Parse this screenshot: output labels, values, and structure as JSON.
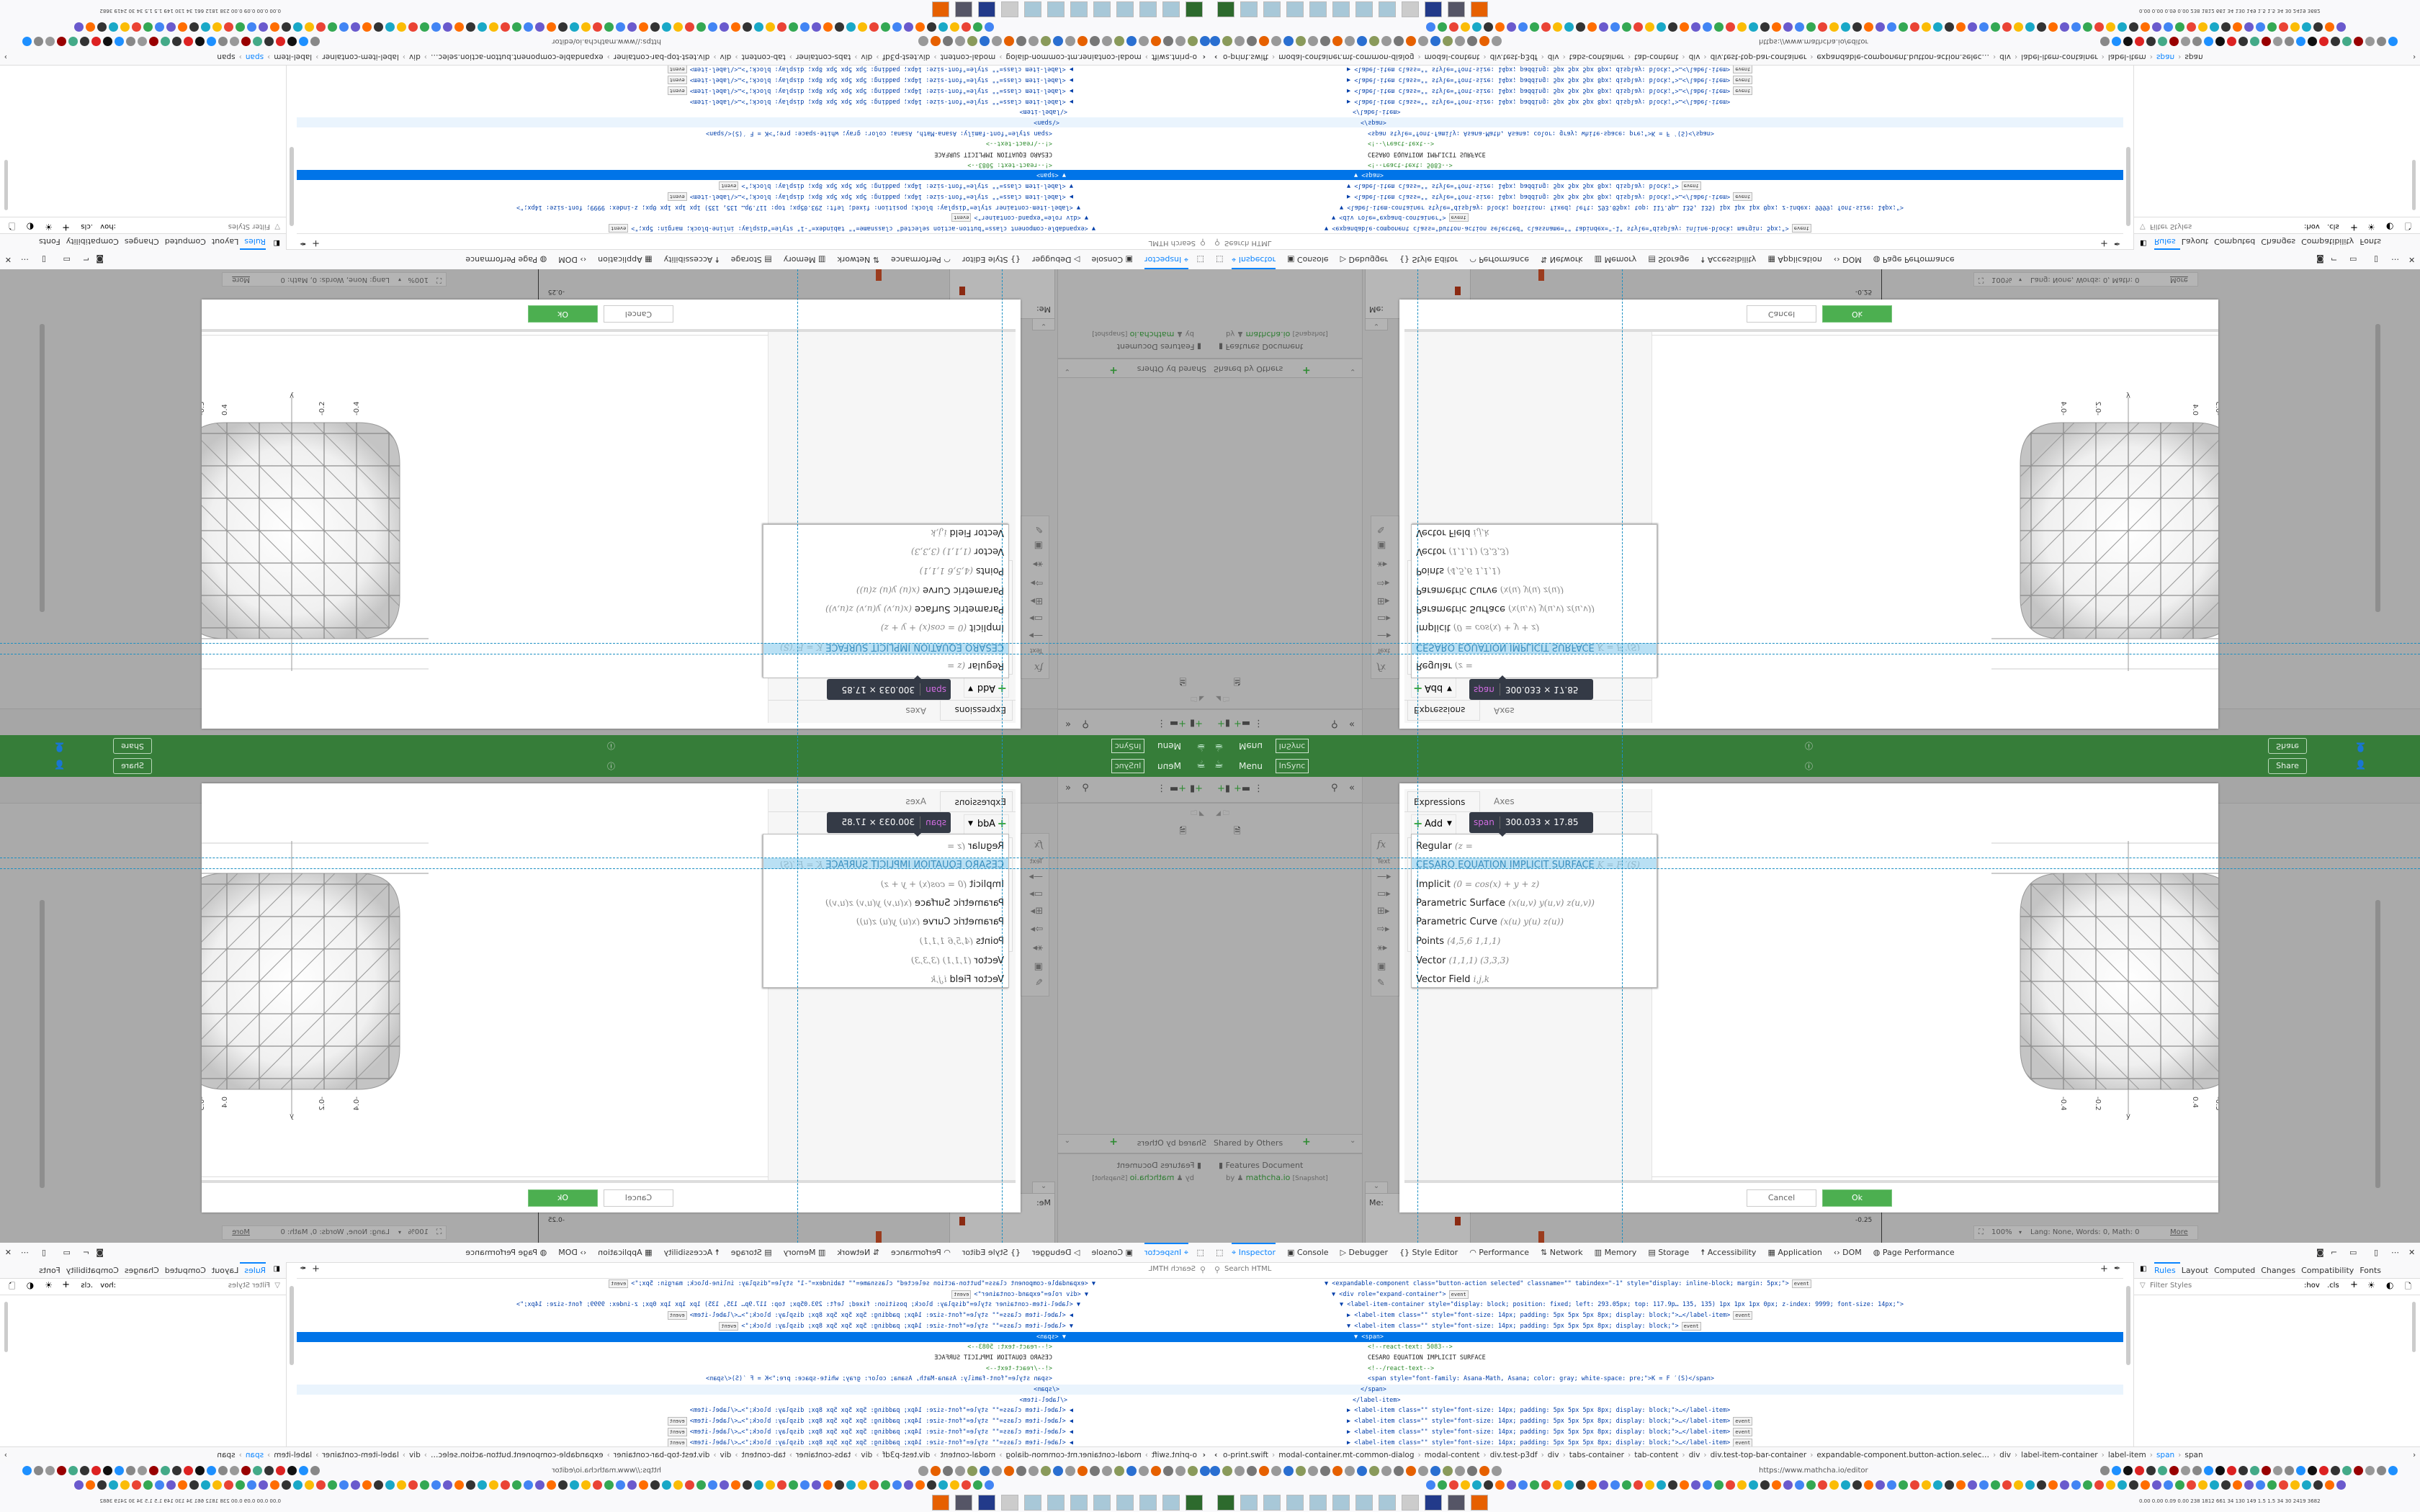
{
  "header": {
    "menu": "Menu",
    "insync": "InSync",
    "share": "Share",
    "accent": "#367d39"
  },
  "sidebar": {
    "shared_title": "Shared by Others",
    "doc_title": "Features Document",
    "by": "by",
    "author": "mathcha.io",
    "snapshot": "[Snapshot]"
  },
  "palette": {
    "fx": "fx",
    "text": "Text"
  },
  "dialog": {
    "tabs": [
      "Expressions",
      "Axes"
    ],
    "add": "Add",
    "menu_items": [
      {
        "label": "Regular",
        "formula": "(z ="
      },
      {
        "label": "CESARO EQUATION IMPLICIT SURFACE",
        "formula": "K = F ′(S)"
      },
      {
        "label": "Implicit",
        "formula": "(0 = cos(x) + y + z)"
      },
      {
        "label": "Parametric Surface",
        "formula": "(x(u,v) y(u,v) z(u,v))"
      },
      {
        "label": "Parametric Curve",
        "formula": "(x(u) y(u) z(u))"
      },
      {
        "label": "Points",
        "formula": "(4,5,6 1,1,1)"
      },
      {
        "label": "Vector",
        "formula": "(1,1,1) (3,3,3)"
      },
      {
        "label": "Vector Field",
        "formula": "i,j,k"
      }
    ],
    "cancel": "Cancel",
    "ok": "Ok"
  },
  "tooltip": {
    "tag": "span",
    "size": "300.033 × 17.85"
  },
  "plot": {
    "x_label": "x",
    "y_label": "y",
    "z_label": "z",
    "x_ticks": [
      "-0.4",
      "-0.2",
      "0",
      "0.2",
      "0.4"
    ],
    "y_ticks": [
      "-0.4",
      "-0.2",
      "0.4"
    ],
    "z_ticks": [
      "-0.5",
      "0",
      "0.5"
    ]
  },
  "canvas": {
    "tick": "-0.25",
    "me": "Me:"
  },
  "statusbar": {
    "zoom": "100%",
    "stats": "Lang: None, Words: 0, Math: 0",
    "more": "More"
  },
  "devtools": {
    "tabs": [
      "Inspector",
      "Console",
      "Debugger",
      "Style Editor",
      "Performance",
      "Network",
      "Memory",
      "Storage",
      "Accessibility",
      "Application",
      "DOM",
      "Page Performance"
    ],
    "search_placeholder": "Search HTML",
    "event": "event",
    "html_lines": [
      "▼ <expandable-component class=\"button-action selected\" classname=\"\" tabindex=\"-1\" style=\"display: inline-block; margin: 5px;\">",
      "▼ <div role=\"expand-container\">",
      "▼ <label-item-container style=\"display: block; position: fixed; left: 293.05px; top: 117.9p… 135, 135) 1px 1px 1px 0px; z-index: 9999; font-size: 14px;\">",
      "▶ <label-item class=\"\" style=\"font-size: 14px; padding: 5px 5px 5px 8px; display: block;\">…</label-item>",
      "▼ <label-item class=\"\" style=\"font-size: 14px; padding: 5px 5px 5px 8px; display: block;\">",
      "▼ <span>",
      "<!--react-text: 5083-->",
      "CESARO EQUATION IMPLICIT SURFACE",
      "<!--/react-text-->",
      "<span style=\"font-family: Asana-Math, Asana; color: gray; white-space: pre;\">K = F ′(S)</span>",
      "</span>",
      "</label-item>",
      "▶ <label-item class=\"\" style=\"font-size: 14px; padding: 5px 5px 5px 8px; display: block;\">…</label-item>",
      "▶ <label-item class=\"\" style=\"font-size: 14px; padding: 5px 5px 5px 8px; display: block;\">…</label-item>",
      "▶ <label-item class=\"\" style=\"font-size: 14px; padding: 5px 5px 5px 8px; display: block;\">…</label-item>",
      "▶ <label-item class=\"\" style=\"font-size: 14px; padding: 5px 5px 5px 8px; display: block;\">…</label-item>"
    ],
    "breadcrumb": [
      "o-print.swift",
      "modal-container.mt-common-dialog",
      "modal-content",
      "div.test-p3df",
      "div",
      "tabs-container",
      "tab-content",
      "div",
      "div.test-top-bar-container",
      "expandable-component.button-action.selec…",
      "div",
      "label-item-container",
      "label-item",
      "span",
      "span"
    ],
    "rules_tabs": [
      "Rules",
      "Layout",
      "Computed",
      "Changes",
      "Compatibility",
      "Fonts"
    ],
    "filter_placeholder": "Filter Styles",
    "hov": ":hov",
    "cls": ".cls",
    "selected_color": "#0074e8"
  },
  "browser": {
    "url": "https://www.mathcha.io/editor",
    "perf_stats": "0.00 0.00 0.09 0.00 238 1812 661 34 130 149 1.5 1.5 34 30 2419 3682"
  }
}
